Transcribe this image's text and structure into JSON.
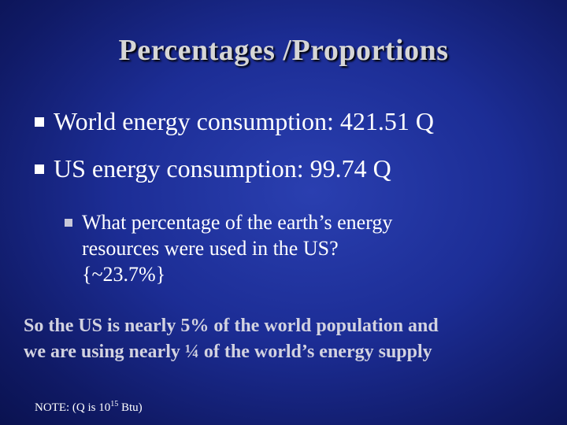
{
  "slide": {
    "title": "Percentages /Proportions",
    "bullets": [
      "World energy consumption: 421.51 Q",
      "US energy consumption: 99.74 Q"
    ],
    "sub_bullet": {
      "line1": "What percentage of the earth’s energy",
      "line2": "resources were used in the US?",
      "line3": "{~23.7%}"
    },
    "emphasis": {
      "line1": "So the US is nearly 5% of the world population and",
      "line2": "we are using nearly ¼ of the world’s energy supply"
    },
    "note": {
      "prefix": "NOTE: (Q is 10",
      "exponent": "15",
      "suffix": " Btu)"
    }
  },
  "colors": {
    "background": "#1c2d95",
    "title": "#d6d6d6",
    "emphasis": "#d2d2e0"
  }
}
